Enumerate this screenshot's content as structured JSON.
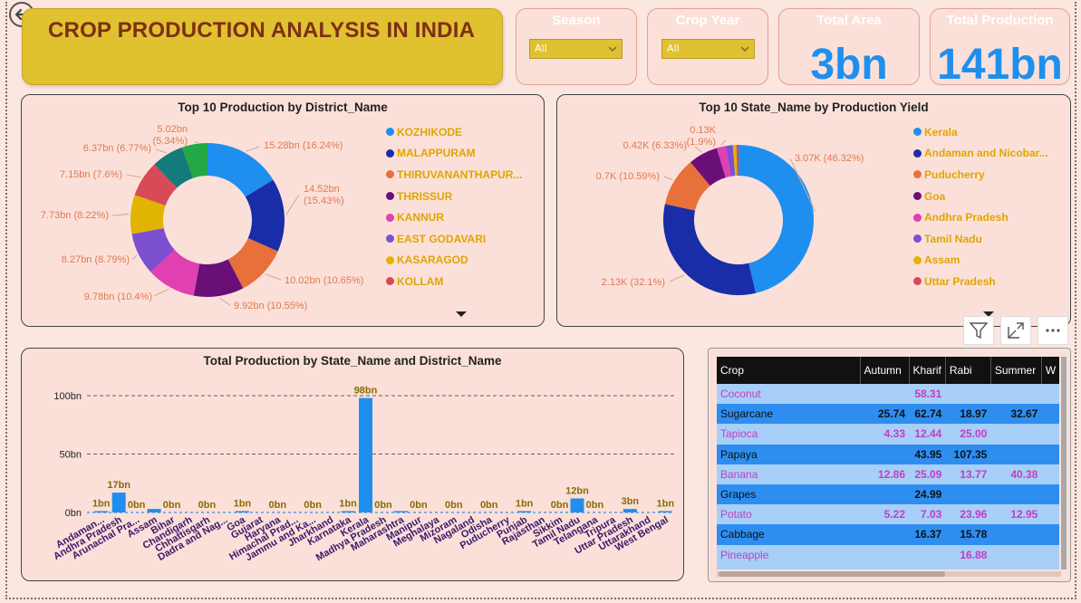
{
  "header": {
    "title": "CROP PRODUCTION ANALYSIS IN INDIA"
  },
  "slicers": {
    "season": {
      "label": "Season",
      "value": "All"
    },
    "crop_year": {
      "label": "Crop Year",
      "value": "All"
    }
  },
  "kpis": {
    "total_area": {
      "label": "Total Area",
      "value": "3bn"
    },
    "total_production": {
      "label": "Total Production",
      "value": "141bn"
    }
  },
  "colors": {
    "blue": "#1f8fef",
    "navy": "#1a2da8",
    "orange": "#e8703a",
    "purple": "#6a0f78",
    "pink": "#e040b0",
    "violet": "#7b4fd0",
    "gold": "#e0b400",
    "red": "#d84a57",
    "teal": "#157a7a",
    "green": "#22a844"
  },
  "chart_data": [
    {
      "type": "pie",
      "title": "Top 10 Production by District_Name",
      "categories": [
        "KOZHIKODE",
        "MALAPPURAM",
        "THIRUVANANTHAPUR...",
        "THRISSUR",
        "KANNUR",
        "EAST GODAVARI",
        "KASARAGOD",
        "KOLLAM",
        "",
        ""
      ],
      "values": [
        15.28,
        14.52,
        10.02,
        9.92,
        9.78,
        8.27,
        7.73,
        7.15,
        6.37,
        5.02
      ],
      "labels": [
        "15.28bn (16.24%)",
        "14.52bn (15.43%)",
        "10.02bn (10.65%)",
        "9.92bn (10.55%)",
        "9.78bn (10.4%)",
        "8.27bn (8.79%)",
        "7.73bn (8.22%)",
        "7.15bn (7.6%)",
        "6.37bn (6.77%)",
        "5.02bn (5.34%)"
      ],
      "colors": [
        "#1f8fef",
        "#1a2da8",
        "#e8703a",
        "#6a0f78",
        "#e040b0",
        "#7b4fd0",
        "#e0b400",
        "#d84a57",
        "#157a7a",
        "#22a844"
      ],
      "legend_placement": "right"
    },
    {
      "type": "pie",
      "title": "Top 10 State_Name by Production Yield",
      "categories": [
        "Kerala",
        "Andaman and Nicobar...",
        "Puducherry",
        "Goa",
        "Andhra Pradesh",
        "Tamil Nadu",
        "Assam",
        "Uttar Pradesh"
      ],
      "values": [
        3.07,
        2.13,
        0.7,
        0.42,
        0.13,
        0.1,
        0.05,
        0.03
      ],
      "labels": [
        "3.07K (46.32%)",
        "2.13K (32.1%)",
        "0.7K (10.59%)",
        "0.42K (6.33%)",
        "0.13K (1.9%)",
        "",
        "",
        ""
      ],
      "colors": [
        "#1f8fef",
        "#1a2da8",
        "#e8703a",
        "#6a0f78",
        "#e040b0",
        "#7b4fd0",
        "#e0b400",
        "#d84a57"
      ],
      "legend_placement": "right"
    },
    {
      "type": "bar",
      "title": "Total Production by State_Name and District_Name",
      "categories": [
        "Andaman...",
        "Andhra Pradesh",
        "Arunachal Pra...",
        "Assam",
        "Bihar",
        "Chandigarh",
        "Chhattisgarh",
        "Dadra and Nag...",
        "Goa",
        "Gujarat",
        "Haryana",
        "Himachal Prad...",
        "Jammu and Ka...",
        "Jharkhand",
        "Karnataka",
        "Kerala",
        "Madhya Pradesh",
        "Maharashtra",
        "Manipur",
        "Meghalaya",
        "Mizoram",
        "Nagaland",
        "Odisha",
        "Puducherry",
        "Punjab",
        "Rajasthan",
        "Sikkim",
        "Tamil Nadu",
        "Telangana",
        "Tripura",
        "Uttar Pradesh",
        "Uttarakhand",
        "West Bengal"
      ],
      "values": [
        1,
        17,
        0,
        3,
        0,
        0,
        0,
        0,
        1,
        0,
        0,
        0,
        0,
        0,
        1,
        98,
        0,
        1,
        0,
        0,
        0,
        0,
        0,
        0,
        1,
        0,
        0,
        12,
        0,
        0,
        3,
        0,
        1
      ],
      "data_labels": [
        "1bn",
        "17bn",
        "0bn",
        "",
        "0bn",
        "",
        "0bn",
        "",
        "1bn",
        "",
        "0bn",
        "",
        "0bn",
        "",
        "1bn",
        "98bn",
        "0bn",
        "",
        "0bn",
        "",
        "0bn",
        "",
        "0bn",
        "",
        "1bn",
        "",
        "0bn",
        "12bn",
        "0bn",
        "",
        "3bn",
        "",
        "1bn"
      ],
      "yticks": [
        "0bn",
        "50bn",
        "100bn"
      ],
      "ylim": [
        0,
        105
      ],
      "grid": true,
      "color": "#1f8fef"
    }
  ],
  "matrix": {
    "columns": [
      "Crop",
      "Autumn",
      "Kharif",
      "Rabi",
      "Summer",
      "W"
    ],
    "rows": [
      [
        "Coconut",
        "",
        "58.31",
        "",
        ""
      ],
      [
        "Sugarcane",
        "25.74",
        "62.74",
        "18.97",
        "32.67"
      ],
      [
        "Tapioca",
        "4.33",
        "12.44",
        "25.00",
        ""
      ],
      [
        "Papaya",
        "",
        "43.95",
        "107.35",
        ""
      ],
      [
        "Banana",
        "12.86",
        "25.09",
        "13.77",
        "40.38"
      ],
      [
        "Grapes",
        "",
        "24.99",
        "",
        ""
      ],
      [
        "Potato",
        "5.22",
        "7.03",
        "23.96",
        "12.95"
      ],
      [
        "Cabbage",
        "",
        "16.37",
        "15.78",
        ""
      ],
      [
        "Pineapple",
        "",
        "",
        "16.88",
        ""
      ]
    ]
  }
}
